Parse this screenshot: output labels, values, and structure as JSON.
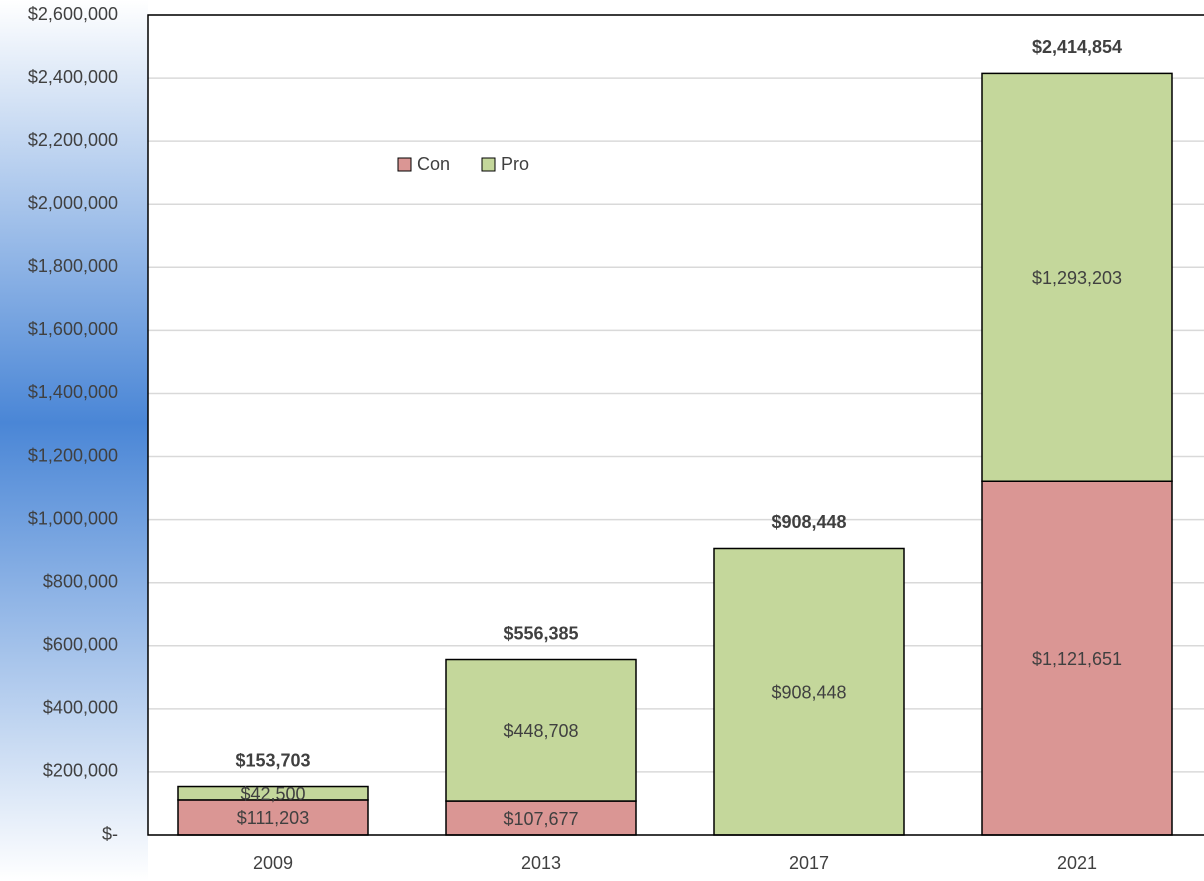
{
  "chart_data": {
    "type": "stacked_bar",
    "categories": [
      "2009",
      "2013",
      "2017",
      "2021"
    ],
    "series": [
      {
        "name": "Con",
        "color": "#da9694",
        "values": [
          111203,
          107677,
          null,
          1121651
        ],
        "value_labels": [
          "$111,203",
          "$107,677",
          null,
          "$1,121,651"
        ]
      },
      {
        "name": "Pro",
        "color": "#c4d79b",
        "values": [
          42500,
          448708,
          908448,
          1293203
        ],
        "value_labels": [
          "$42,500",
          "$448,708",
          "$908,448",
          "$1,293,203"
        ]
      }
    ],
    "totals": [
      153703,
      556385,
      908448,
      2414854
    ],
    "total_labels": [
      "$153,703",
      "$556,385",
      "$908,448",
      "$2,414,854"
    ],
    "ylim": [
      0,
      2600000
    ],
    "yticks": [
      {
        "value": 0,
        "label": "$-"
      },
      {
        "value": 200000,
        "label": "$200,000"
      },
      {
        "value": 400000,
        "label": "$400,000"
      },
      {
        "value": 600000,
        "label": "$600,000"
      },
      {
        "value": 800000,
        "label": "$800,000"
      },
      {
        "value": 1000000,
        "label": "$1,000,000"
      },
      {
        "value": 1200000,
        "label": "$1,200,000"
      },
      {
        "value": 1400000,
        "label": "$1,400,000"
      },
      {
        "value": 1600000,
        "label": "$1,600,000"
      },
      {
        "value": 1800000,
        "label": "$1,800,000"
      },
      {
        "value": 2000000,
        "label": "$2,000,000"
      },
      {
        "value": 2200000,
        "label": "$2,200,000"
      },
      {
        "value": 2400000,
        "label": "$2,400,000"
      },
      {
        "value": 2600000,
        "label": "$2,600,000"
      }
    ],
    "grid": true
  }
}
